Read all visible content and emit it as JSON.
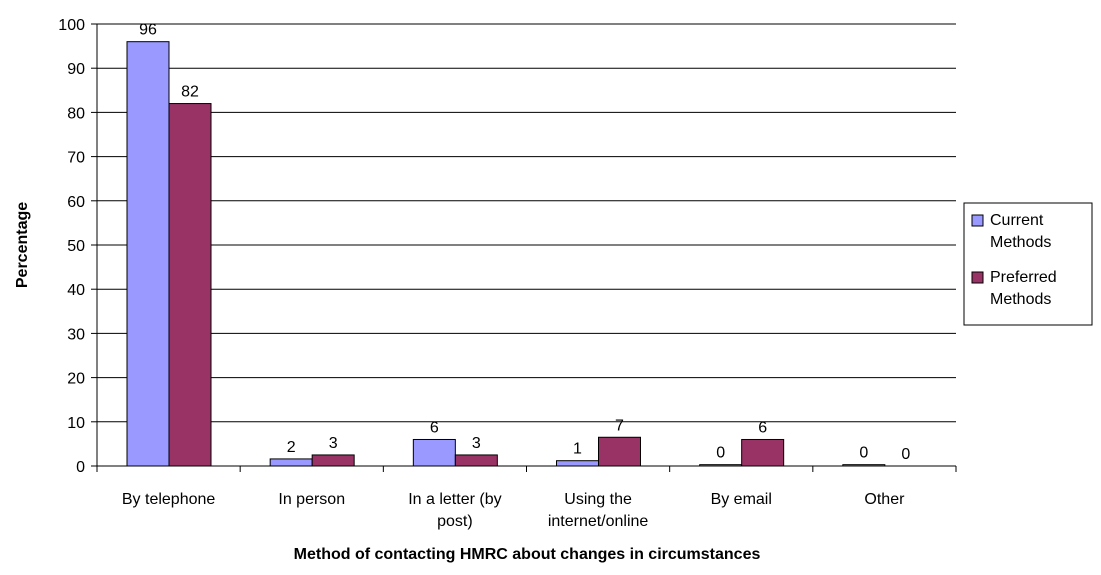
{
  "chart_data": {
    "type": "bar",
    "title": "",
    "xlabel": "Method of contacting HMRC about changes in circumstances",
    "ylabel": "Percentage",
    "ylim": [
      0,
      100
    ],
    "yticks": [
      0,
      10,
      20,
      30,
      40,
      50,
      60,
      70,
      80,
      90,
      100
    ],
    "grid": true,
    "legend_position": "right",
    "categories": [
      [
        "By telephone"
      ],
      [
        "In person"
      ],
      [
        "In a letter (by",
        "post)"
      ],
      [
        "Using the",
        "internet/online"
      ],
      [
        "By email"
      ],
      [
        "Other"
      ]
    ],
    "series": [
      {
        "name": [
          "Current",
          "Methods"
        ],
        "color": "#9999ff",
        "values": [
          96,
          1.6,
          6,
          1.2,
          0.3,
          0.3
        ],
        "labels": [
          "96",
          "2",
          "6",
          "1",
          "0",
          "0"
        ]
      },
      {
        "name": [
          "Preferred",
          "Methods"
        ],
        "color": "#993366",
        "values": [
          82,
          2.5,
          2.5,
          6.5,
          6,
          0
        ],
        "labels": [
          "82",
          "3",
          "3",
          "7",
          "6",
          "0"
        ]
      }
    ]
  }
}
